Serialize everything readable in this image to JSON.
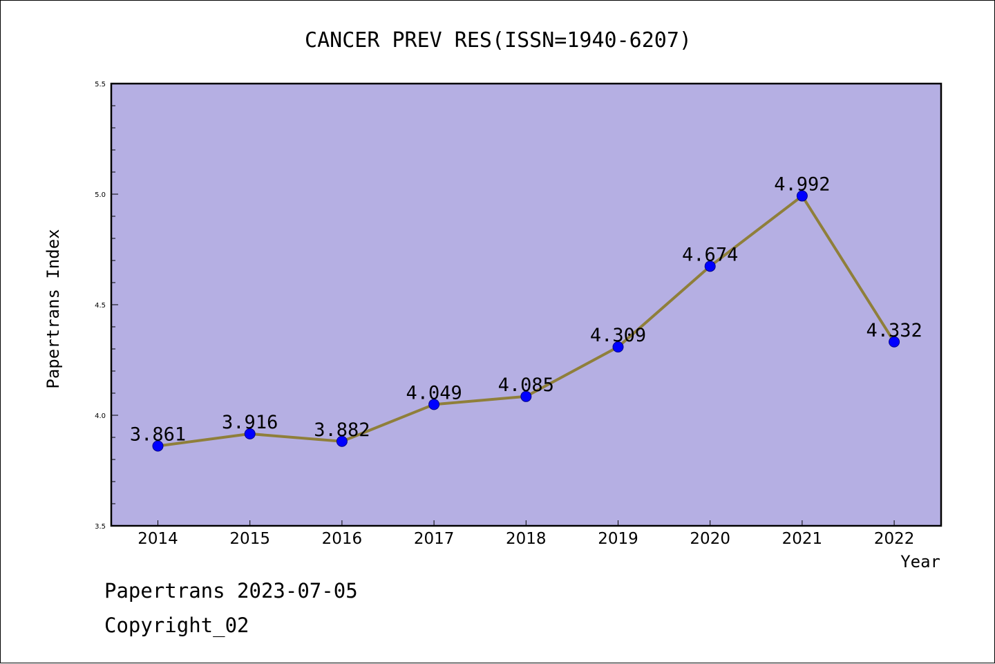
{
  "chart_data": {
    "type": "line",
    "title": "CANCER PREV RES(ISSN=1940-6207)",
    "xlabel": "Year",
    "ylabel": "Papertrans Index",
    "categories": [
      "2014",
      "2015",
      "2016",
      "2017",
      "2018",
      "2019",
      "2020",
      "2021",
      "2022"
    ],
    "values": [
      3.861,
      3.916,
      3.882,
      4.049,
      4.085,
      4.309,
      4.674,
      4.992,
      4.332
    ],
    "data_labels": [
      "3.861",
      "3.916",
      "3.882",
      "4.049",
      "4.085",
      "4.309",
      "4.674",
      "4.992",
      "4.332"
    ],
    "ylim": [
      3.5,
      5.5
    ],
    "yticks": [
      "3.5",
      "4.0",
      "4.5",
      "5.0",
      "5.5"
    ],
    "grid": false,
    "colors": {
      "plot_background": "#b5afe3",
      "line": "#8f7f3a",
      "marker": "#0000ff"
    }
  },
  "footer": {
    "line1": "Papertrans 2023-07-05",
    "line2": "Copyright_02"
  }
}
